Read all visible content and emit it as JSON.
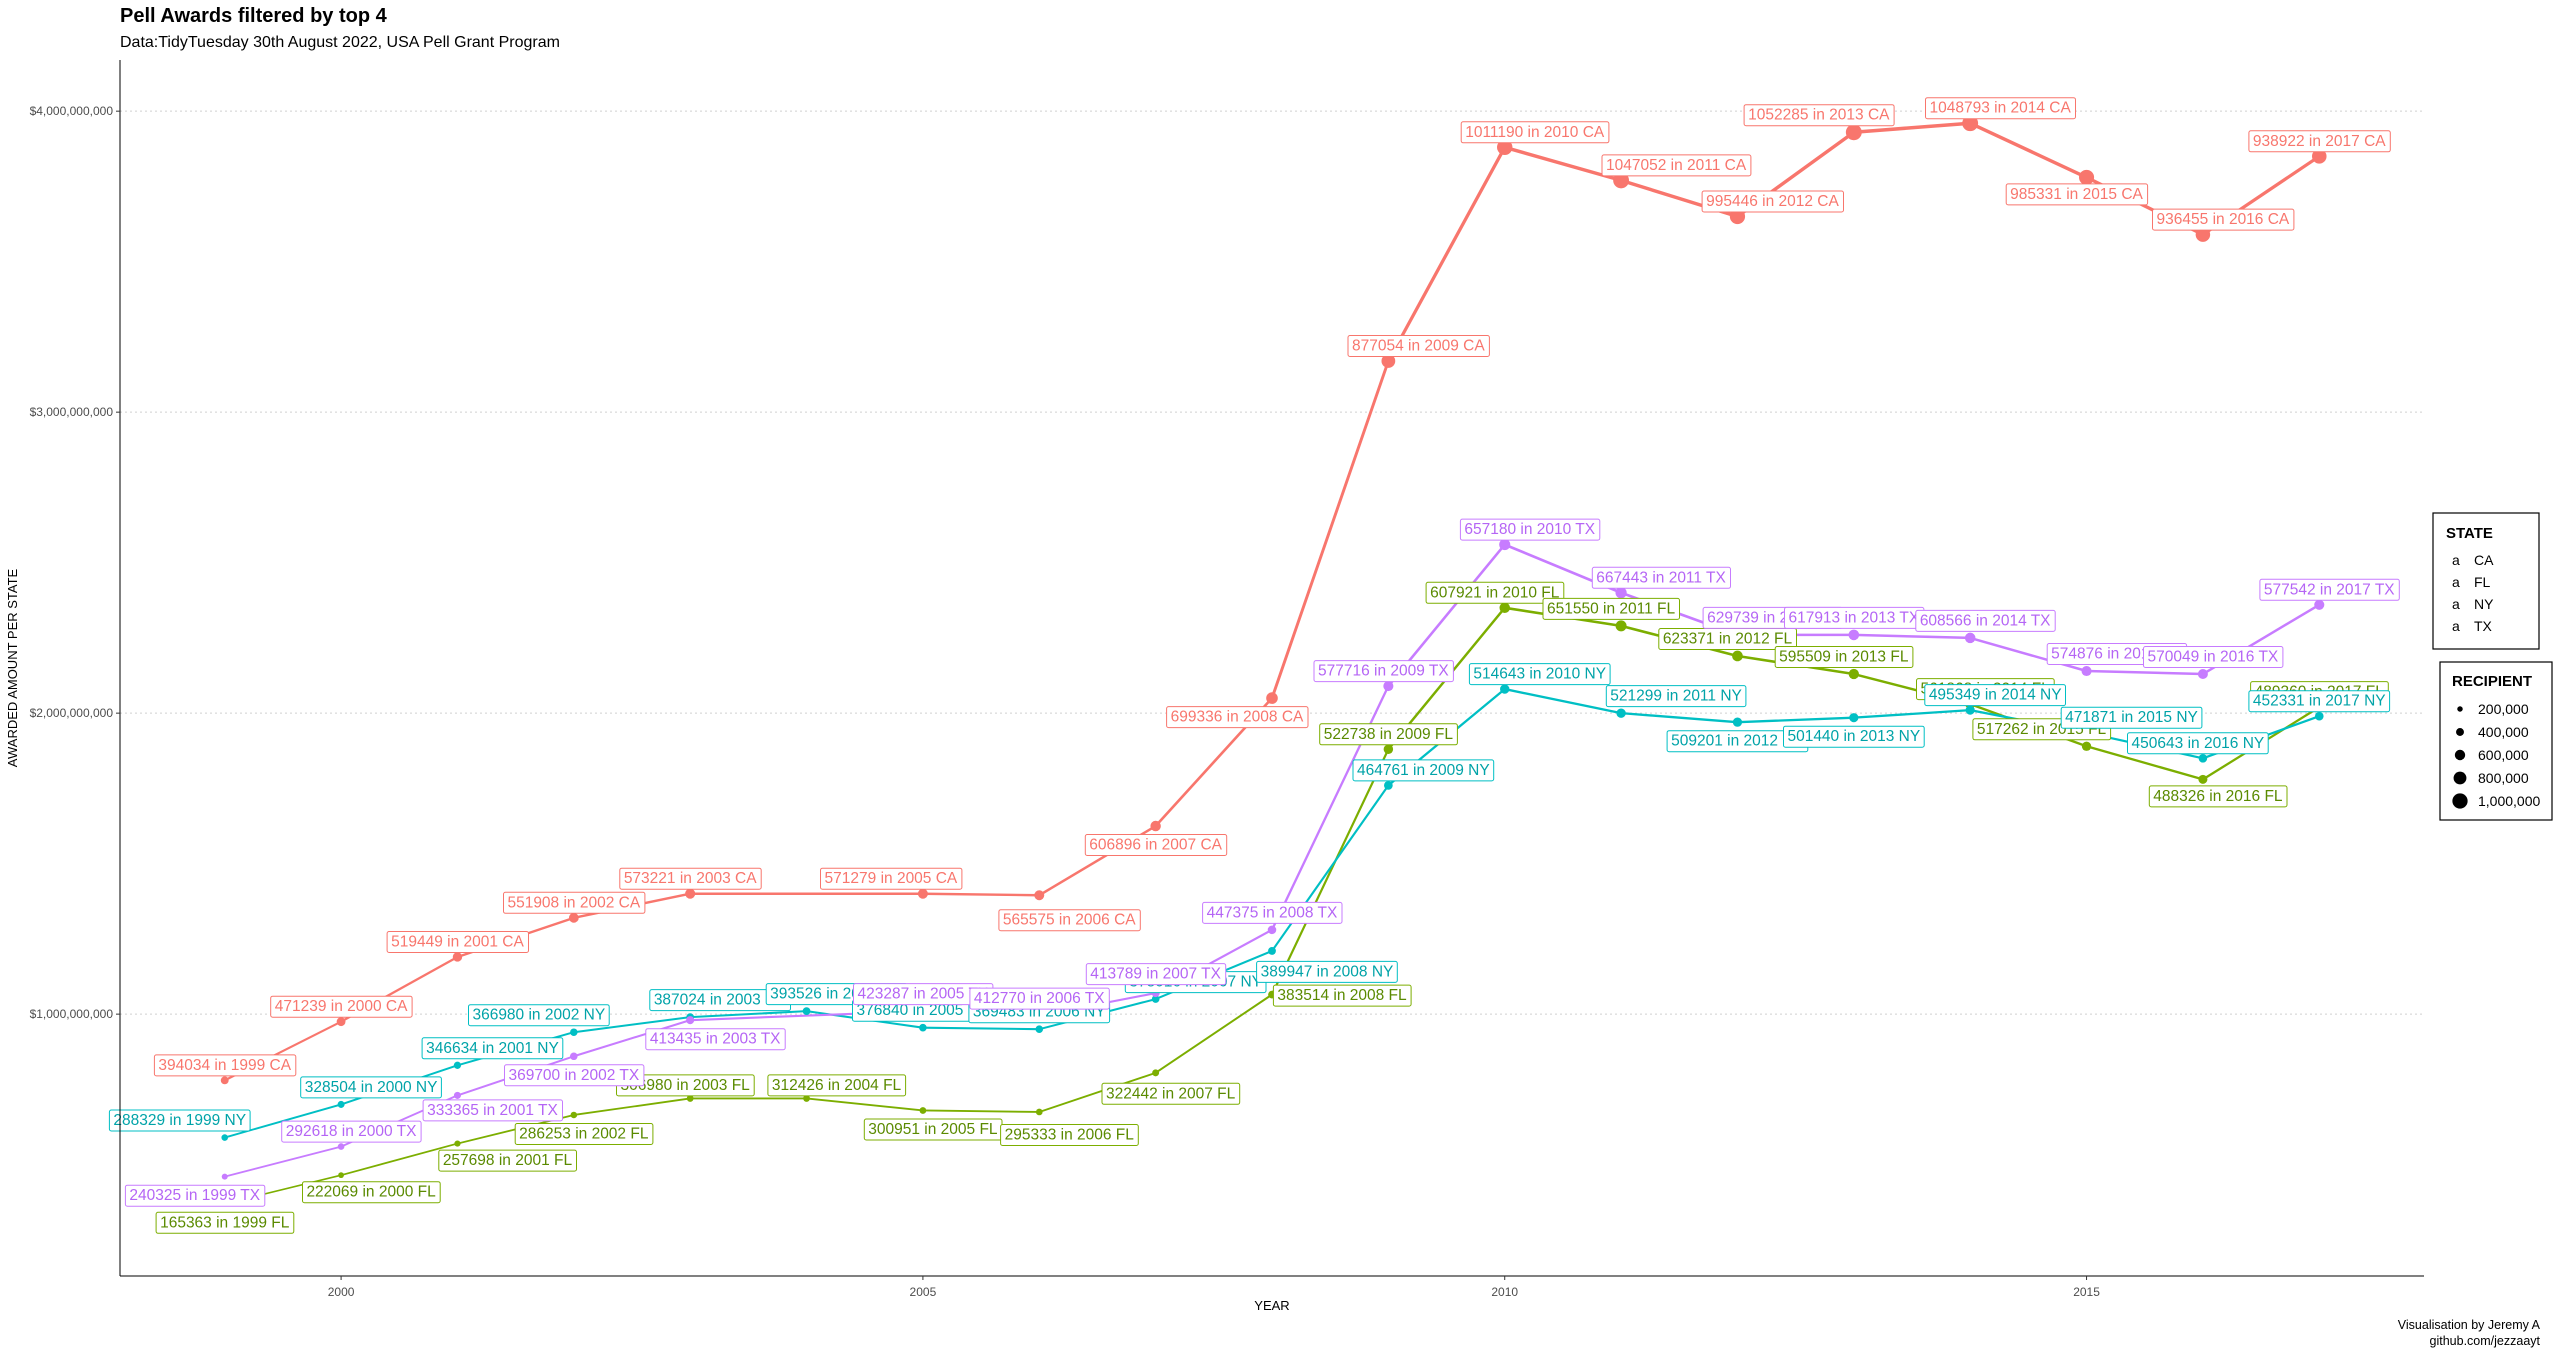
{
  "chart_data": {
    "type": "line",
    "title": "Pell Awards filtered by top 4",
    "subtitle": "Data:TidyTuesday 30th August 2022, USA Pell Grant Program",
    "xlabel": "YEAR",
    "ylabel": "AWARDED AMOUNT PER STATE",
    "caption_lines": [
      "Visualisation by Jeremy A",
      "github.com/jezzaayt"
    ],
    "x_ticks": [
      2000,
      2005,
      2010,
      2015
    ],
    "y_ticks": [
      1000000000,
      2000000000,
      3000000000,
      4000000000
    ],
    "y_tick_labels": [
      "$1,000,000,000",
      "$2,000,000,000",
      "$3,000,000,000",
      "$4,000,000,000"
    ],
    "xlim": [
      1998.1,
      2017.9
    ],
    "ylim": [
      130000000,
      4170000000
    ],
    "grid": "horizontal-dotted",
    "legend_position": "right",
    "legend_colour": {
      "title": "STATE",
      "key_glyph": "a",
      "items": [
        {
          "name": "CA",
          "color": "#F8766D"
        },
        {
          "name": "FL",
          "color": "#7CAE00"
        },
        {
          "name": "NY",
          "color": "#00BFC4"
        },
        {
          "name": "TX",
          "color": "#C77CFF"
        }
      ]
    },
    "legend_size": {
      "title": "RECIPIENT",
      "items": [
        {
          "value": 200000,
          "label": "200,000"
        },
        {
          "value": 400000,
          "label": "400,000"
        },
        {
          "value": 600000,
          "label": "600,000"
        },
        {
          "value": 800000,
          "label": "800,000"
        },
        {
          "value": 1000000,
          "label": "1,000,000"
        }
      ]
    },
    "series": [
      {
        "name": "CA",
        "color": "#F8766D",
        "points": [
          {
            "x": 1999,
            "y": 780000000,
            "recipients": 394034
          },
          {
            "x": 2000,
            "y": 975000000,
            "recipients": 471239
          },
          {
            "x": 2001,
            "y": 1190000000,
            "recipients": 519449
          },
          {
            "x": 2002,
            "y": 1320000000,
            "recipients": 551908
          },
          {
            "x": 2003,
            "y": 1400000000,
            "recipients": 573221
          },
          {
            "x": 2005,
            "y": 1400000000,
            "recipients": 571279
          },
          {
            "x": 2006,
            "y": 1395000000,
            "recipients": 565575
          },
          {
            "x": 2007,
            "y": 1625000000,
            "recipients": 606896
          },
          {
            "x": 2008,
            "y": 2050000000,
            "recipients": 699336
          },
          {
            "x": 2009,
            "y": 3170000000,
            "recipients": 877054
          },
          {
            "x": 2010,
            "y": 3880000000,
            "recipients": 1011190
          },
          {
            "x": 2011,
            "y": 3770000000,
            "recipients": 1047052
          },
          {
            "x": 2012,
            "y": 3650000000,
            "recipients": 995446
          },
          {
            "x": 2013,
            "y": 3930000000,
            "recipients": 1052285
          },
          {
            "x": 2014,
            "y": 3960000000,
            "recipients": 1048793
          },
          {
            "x": 2015,
            "y": 3780000000,
            "recipients": 985331
          },
          {
            "x": 2016,
            "y": 3590000000,
            "recipients": 936455
          },
          {
            "x": 2017,
            "y": 3850000000,
            "recipients": 938922
          }
        ]
      },
      {
        "name": "FL",
        "color": "#7CAE00",
        "points": [
          {
            "x": 1999,
            "y": 370000000,
            "recipients": 165363
          },
          {
            "x": 2000,
            "y": 465000000,
            "recipients": 222069
          },
          {
            "x": 2001,
            "y": 570000000,
            "recipients": 257698
          },
          {
            "x": 2002,
            "y": 665000000,
            "recipients": 286253
          },
          {
            "x": 2003,
            "y": 720000000,
            "recipients": 306980
          },
          {
            "x": 2004,
            "y": 720000000,
            "recipients": 312426
          },
          {
            "x": 2005,
            "y": 680000000,
            "recipients": 300951
          },
          {
            "x": 2006,
            "y": 675000000,
            "recipients": 295333
          },
          {
            "x": 2007,
            "y": 805000000,
            "recipients": 322442
          },
          {
            "x": 2008,
            "y": 1065000000,
            "recipients": 383514
          },
          {
            "x": 2009,
            "y": 1880000000,
            "recipients": 522738
          },
          {
            "x": 2010,
            "y": 2350000000,
            "recipients": 607921
          },
          {
            "x": 2011,
            "y": 2290000000,
            "recipients": 651550
          },
          {
            "x": 2012,
            "y": 2190000000,
            "recipients": 623371
          },
          {
            "x": 2013,
            "y": 2130000000,
            "recipients": 595509
          },
          {
            "x": 2014,
            "y": 2030000000,
            "recipients": 561868
          },
          {
            "x": 2015,
            "y": 1890000000,
            "recipients": 517262
          },
          {
            "x": 2016,
            "y": 1780000000,
            "recipients": 488326
          },
          {
            "x": 2017,
            "y": 2020000000,
            "recipients": 489360
          }
        ]
      },
      {
        "name": "NY",
        "color": "#00BFC4",
        "points": [
          {
            "x": 1999,
            "y": 590000000,
            "recipients": 288329
          },
          {
            "x": 2000,
            "y": 700000000,
            "recipients": 328504
          },
          {
            "x": 2001,
            "y": 830000000,
            "recipients": 346634
          },
          {
            "x": 2002,
            "y": 940000000,
            "recipients": 366980
          },
          {
            "x": 2003,
            "y": 990000000,
            "recipients": 387024
          },
          {
            "x": 2004,
            "y": 1010000000,
            "recipients": 393526
          },
          {
            "x": 2005,
            "y": 955000000,
            "recipients": 376840
          },
          {
            "x": 2006,
            "y": 950000000,
            "recipients": 369483
          },
          {
            "x": 2007,
            "y": 1050000000,
            "recipients": 378016
          },
          {
            "x": 2008,
            "y": 1210000000,
            "recipients": 389947
          },
          {
            "x": 2009,
            "y": 1760000000,
            "recipients": 464761
          },
          {
            "x": 2010,
            "y": 2080000000,
            "recipients": 514643
          },
          {
            "x": 2011,
            "y": 2000000000,
            "recipients": 521299
          },
          {
            "x": 2012,
            "y": 1970000000,
            "recipients": 509201
          },
          {
            "x": 2013,
            "y": 1985000000,
            "recipients": 501440
          },
          {
            "x": 2014,
            "y": 2010000000,
            "recipients": 495349
          },
          {
            "x": 2015,
            "y": 1935000000,
            "recipients": 471871
          },
          {
            "x": 2016,
            "y": 1850000000,
            "recipients": 450643
          },
          {
            "x": 2017,
            "y": 1990000000,
            "recipients": 452331
          }
        ]
      },
      {
        "name": "TX",
        "color": "#C77CFF",
        "points": [
          {
            "x": 1999,
            "y": 460000000,
            "recipients": 240325
          },
          {
            "x": 2000,
            "y": 560000000,
            "recipients": 292618
          },
          {
            "x": 2001,
            "y": 730000000,
            "recipients": 333365
          },
          {
            "x": 2002,
            "y": 860000000,
            "recipients": 369700
          },
          {
            "x": 2003,
            "y": 980000000,
            "recipients": 413435
          },
          {
            "x": 2005,
            "y": 1010000000,
            "recipients": 423287
          },
          {
            "x": 2006,
            "y": 995000000,
            "recipients": 412770
          },
          {
            "x": 2007,
            "y": 1070000000,
            "recipients": 413789
          },
          {
            "x": 2008,
            "y": 1280000000,
            "recipients": 447375
          },
          {
            "x": 2009,
            "y": 2090000000,
            "recipients": 577716
          },
          {
            "x": 2010,
            "y": 2560000000,
            "recipients": 657180
          },
          {
            "x": 2011,
            "y": 2400000000,
            "recipients": 667443
          },
          {
            "x": 2012,
            "y": 2260000000,
            "recipients": 629739
          },
          {
            "x": 2013,
            "y": 2260000000,
            "recipients": 617913
          },
          {
            "x": 2014,
            "y": 2250000000,
            "recipients": 608566
          },
          {
            "x": 2015,
            "y": 2140000000,
            "recipients": 574876
          },
          {
            "x": 2016,
            "y": 2130000000,
            "recipients": 570049
          },
          {
            "x": 2017,
            "y": 2360000000,
            "recipients": 577542
          }
        ]
      }
    ]
  }
}
